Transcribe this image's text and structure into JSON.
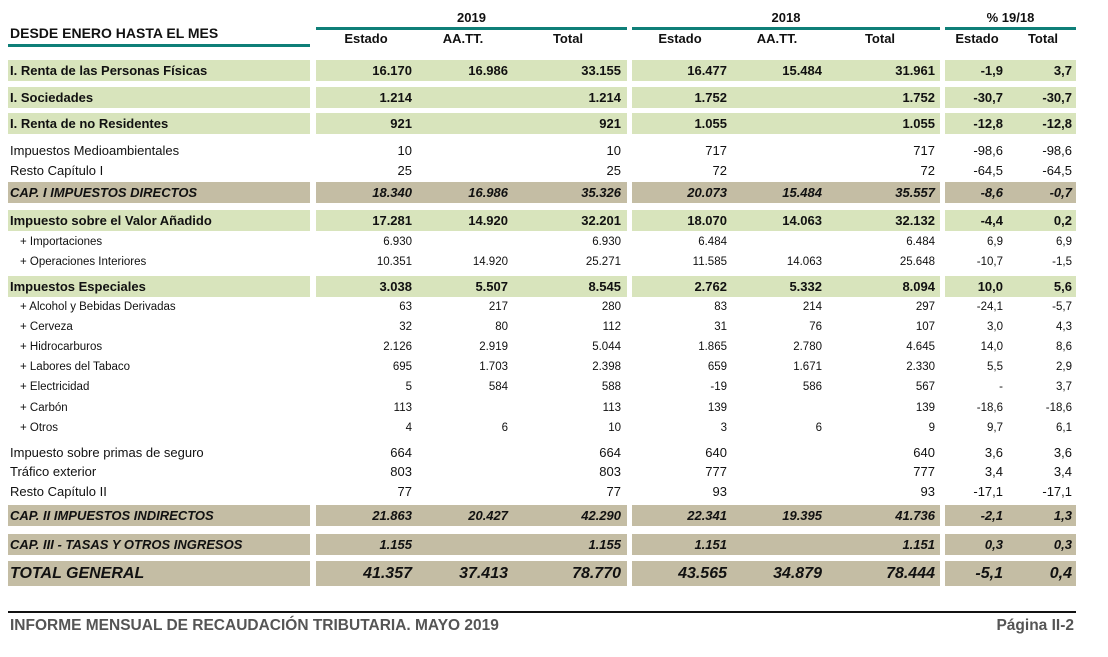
{
  "header": {
    "title": "DESDE ENERO HASTA EL MES",
    "years": [
      "2019",
      "2018",
      "% 19/18"
    ],
    "columns": [
      "Estado",
      "AA.TT.",
      "Total",
      "Estado",
      "AA.TT.",
      "Total",
      "Estado",
      "Total"
    ]
  },
  "colors": {
    "band_green": "#d8e4bc",
    "band_tan": "#c4bda4",
    "rule_teal": "#0f7f78",
    "footer_text": "#555555"
  },
  "rows": [
    {
      "kind": "green",
      "label": "I. Renta de las Personas Físicas",
      "values": [
        "16.170",
        "16.986",
        "33.155",
        "16.477",
        "15.484",
        "31.961",
        "-1,9",
        "3,7"
      ]
    },
    {
      "kind": "green",
      "label": "I. Sociedades",
      "values": [
        "1.214",
        "",
        "1.214",
        "1.752",
        "",
        "1.752",
        "-30,7",
        "-30,7"
      ]
    },
    {
      "kind": "green",
      "label": "I. Renta de no Residentes",
      "values": [
        "921",
        "",
        "921",
        "1.055",
        "",
        "1.055",
        "-12,8",
        "-12,8"
      ]
    },
    {
      "kind": "plain",
      "label": "Impuestos Medioambientales",
      "values": [
        "10",
        "",
        "10",
        "717",
        "",
        "717",
        "-98,6",
        "-98,6"
      ]
    },
    {
      "kind": "plain",
      "label": "Resto Capítulo I",
      "values": [
        "25",
        "",
        "25",
        "72",
        "",
        "72",
        "-64,5",
        "-64,5"
      ]
    },
    {
      "kind": "tan",
      "label": "CAP. I IMPUESTOS DIRECTOS",
      "values": [
        "18.340",
        "16.986",
        "35.326",
        "20.073",
        "15.484",
        "35.557",
        "-8,6",
        "-0,7"
      ]
    },
    {
      "kind": "green",
      "label": "Impuesto sobre el Valor Añadido",
      "values": [
        "17.281",
        "14.920",
        "32.201",
        "18.070",
        "14.063",
        "32.132",
        "-4,4",
        "0,2"
      ]
    },
    {
      "kind": "small",
      "label": "+ Importaciones",
      "values": [
        "6.930",
        "",
        "6.930",
        "6.484",
        "",
        "6.484",
        "6,9",
        "6,9"
      ]
    },
    {
      "kind": "small",
      "label": "+ Operaciones Interiores",
      "values": [
        "10.351",
        "14.920",
        "25.271",
        "11.585",
        "14.063",
        "25.648",
        "-10,7",
        "-1,5"
      ]
    },
    {
      "kind": "green",
      "label": "Impuestos Especiales",
      "values": [
        "3.038",
        "5.507",
        "8.545",
        "2.762",
        "5.332",
        "8.094",
        "10,0",
        "5,6"
      ]
    },
    {
      "kind": "small",
      "label": "+ Alcohol y Bebidas Derivadas",
      "values": [
        "63",
        "217",
        "280",
        "83",
        "214",
        "297",
        "-24,1",
        "-5,7"
      ]
    },
    {
      "kind": "small",
      "label": "+ Cerveza",
      "values": [
        "32",
        "80",
        "112",
        "31",
        "76",
        "107",
        "3,0",
        "4,3"
      ]
    },
    {
      "kind": "small",
      "label": "+ Hidrocarburos",
      "values": [
        "2.126",
        "2.919",
        "5.044",
        "1.865",
        "2.780",
        "4.645",
        "14,0",
        "8,6"
      ]
    },
    {
      "kind": "small",
      "label": "+ Labores del Tabaco",
      "values": [
        "695",
        "1.703",
        "2.398",
        "659",
        "1.671",
        "2.330",
        "5,5",
        "2,9"
      ]
    },
    {
      "kind": "small",
      "label": "+ Electricidad",
      "values": [
        "5",
        "584",
        "588",
        "-19",
        "586",
        "567",
        "-",
        "3,7"
      ]
    },
    {
      "kind": "small",
      "label": "+ Carbón",
      "values": [
        "113",
        "",
        "113",
        "139",
        "",
        "139",
        "-18,6",
        "-18,6"
      ]
    },
    {
      "kind": "small",
      "label": "+ Otros",
      "values": [
        "4",
        "6",
        "10",
        "3",
        "6",
        "9",
        "9,7",
        "6,1"
      ]
    },
    {
      "kind": "plain",
      "label": "Impuesto sobre primas de seguro",
      "values": [
        "664",
        "",
        "664",
        "640",
        "",
        "640",
        "3,6",
        "3,6"
      ]
    },
    {
      "kind": "plain",
      "label": "Tráfico exterior",
      "values": [
        "803",
        "",
        "803",
        "777",
        "",
        "777",
        "3,4",
        "3,4"
      ]
    },
    {
      "kind": "plain",
      "label": "Resto Capítulo II",
      "values": [
        "77",
        "",
        "77",
        "93",
        "",
        "93",
        "-17,1",
        "-17,1"
      ]
    },
    {
      "kind": "tan",
      "label": "CAP. II IMPUESTOS INDIRECTOS",
      "values": [
        "21.863",
        "20.427",
        "42.290",
        "22.341",
        "19.395",
        "41.736",
        "-2,1",
        "1,3"
      ]
    },
    {
      "kind": "tan",
      "label": "CAP. III - TASAS Y OTROS INGRESOS",
      "values": [
        "1.155",
        "",
        "1.155",
        "1.151",
        "",
        "1.151",
        "0,3",
        "0,3"
      ]
    },
    {
      "kind": "tan big",
      "label": "TOTAL GENERAL",
      "values": [
        "41.357",
        "37.413",
        "78.770",
        "43.565",
        "34.879",
        "78.444",
        "-5,1",
        "0,4"
      ]
    }
  ],
  "footer": {
    "report": "INFORME MENSUAL DE RECAUDACIÓN TRIBUTARIA. MAYO 2019",
    "page": "Página II-2"
  }
}
